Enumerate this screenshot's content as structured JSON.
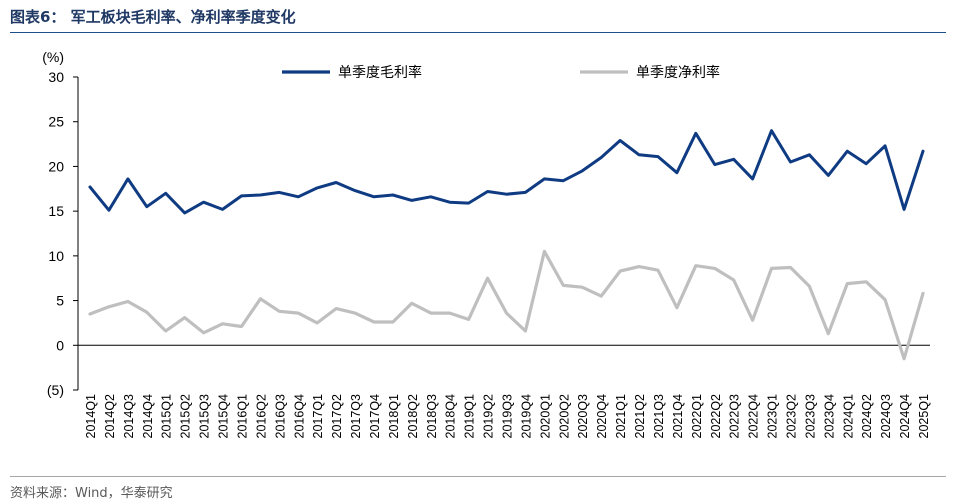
{
  "title": "图表6：  军工板块毛利率、净利率季度变化",
  "source": "资料来源：Wind，华泰研究",
  "chart_data": {
    "type": "line",
    "y_unit": "(%)",
    "ylim": [
      -5,
      30
    ],
    "yticks": [
      30,
      25,
      20,
      15,
      10,
      5,
      0,
      -5
    ],
    "ytick_labels": [
      "30",
      "25",
      "20",
      "15",
      "10",
      "5",
      "0",
      "(5)"
    ],
    "grid": false,
    "legend_position": "top",
    "categories": [
      "2014Q1",
      "2014Q2",
      "2014Q3",
      "2014Q4",
      "2015Q1",
      "2015Q2",
      "2015Q3",
      "2015Q4",
      "2016Q1",
      "2016Q2",
      "2016Q3",
      "2016Q4",
      "2017Q1",
      "2017Q2",
      "2017Q3",
      "2017Q4",
      "2018Q1",
      "2018Q2",
      "2018Q3",
      "2018Q4",
      "2019Q1",
      "2019Q2",
      "2019Q3",
      "2019Q4",
      "2020Q1",
      "2020Q2",
      "2020Q3",
      "2020Q4",
      "2021Q1",
      "2021Q2",
      "2021Q3",
      "2021Q4",
      "2022Q1",
      "2022Q2",
      "2022Q3",
      "2022Q4",
      "2023Q1",
      "2023Q2",
      "2023Q3",
      "2023Q4",
      "2024Q1",
      "2024Q2",
      "2024Q3",
      "2024Q4",
      "2025Q1"
    ],
    "series": [
      {
        "name": "单季度毛利率",
        "color": "#0f3b83",
        "values": [
          17.7,
          15.1,
          18.6,
          15.5,
          17.0,
          14.8,
          16.0,
          15.2,
          16.7,
          16.8,
          17.1,
          16.6,
          17.6,
          18.2,
          17.3,
          16.6,
          16.8,
          16.2,
          16.6,
          16.0,
          15.9,
          17.2,
          16.9,
          17.1,
          18.6,
          18.4,
          19.5,
          21.0,
          22.9,
          21.3,
          21.1,
          19.3,
          23.7,
          20.2,
          20.8,
          18.6,
          24.0,
          20.5,
          21.3,
          19.0,
          21.7,
          20.3,
          22.3,
          15.2,
          21.7
        ]
      },
      {
        "name": "单季度净利率",
        "color": "#bfbfbf",
        "values": [
          3.5,
          4.3,
          4.9,
          3.7,
          1.6,
          3.1,
          1.4,
          2.4,
          2.1,
          5.2,
          3.8,
          3.6,
          2.5,
          4.1,
          3.6,
          2.6,
          2.6,
          4.7,
          3.6,
          3.6,
          2.9,
          7.5,
          3.6,
          1.6,
          10.5,
          6.7,
          6.5,
          5.5,
          8.3,
          8.8,
          8.4,
          4.2,
          8.9,
          8.6,
          7.3,
          2.8,
          8.6,
          8.7,
          6.6,
          1.3,
          6.9,
          7.1,
          5.1,
          -1.5,
          5.8
        ]
      }
    ]
  }
}
